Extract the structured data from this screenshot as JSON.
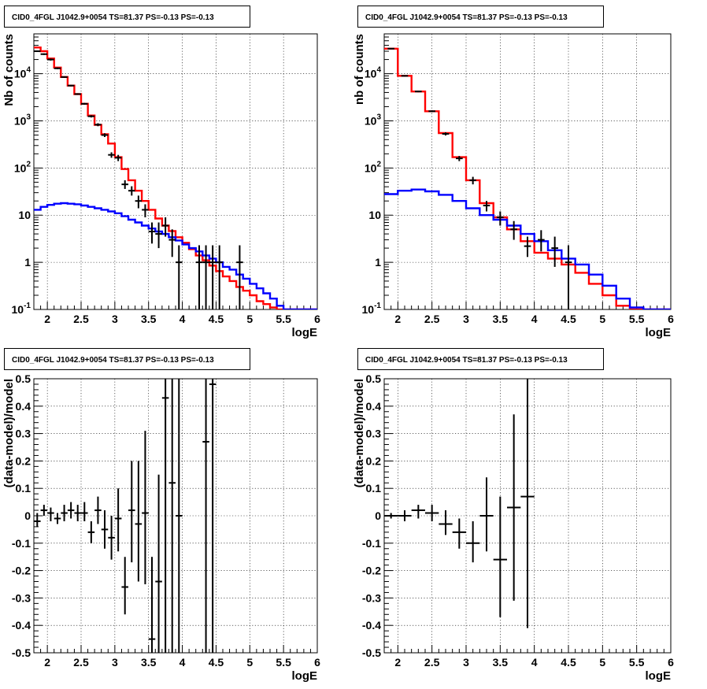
{
  "colors": {
    "model_total": "#ff0000",
    "model_background": "#0000ff",
    "data": "#000000",
    "grid": "#000000"
  },
  "chart_data": [
    {
      "type": "line",
      "title": "CID0_4FGL J1042.9+0054 TS=81.37 PS=-0.13 PS=-0.13",
      "xlabel": "logE",
      "ylabel": "Nb of counts",
      "xlim": [
        1.8,
        6.0
      ],
      "ylim": [
        0.1,
        70000
      ],
      "yscale": "log",
      "grid": true,
      "x_ticks": [
        "2",
        "2.5",
        "3",
        "3.5",
        "4",
        "4.5",
        "5",
        "5.5",
        "6"
      ],
      "y_ticks": [
        "10^-1",
        "1",
        "10",
        "10^2",
        "10^3",
        "10^4"
      ],
      "x_edges": [
        1.8,
        1.9,
        2.0,
        2.1,
        2.2,
        2.3,
        2.4,
        2.5,
        2.6,
        2.7,
        2.8,
        2.9,
        3.0,
        3.1,
        3.2,
        3.3,
        3.4,
        3.5,
        3.6,
        3.7,
        3.8,
        3.9,
        4.0,
        4.1,
        4.2,
        4.3,
        4.4,
        4.5,
        4.6,
        4.7,
        4.8,
        4.9,
        5.0,
        5.1,
        5.2,
        5.3,
        5.4,
        5.5,
        5.6,
        5.7,
        5.8,
        5.9,
        6.0
      ],
      "series": [
        {
          "name": "",
          "kind": "step",
          "color": "#ff0000",
          "values": [
            36000,
            30000,
            21000,
            13500,
            8500,
            5600,
            3700,
            2300,
            1300,
            820,
            520,
            330,
            170,
            95,
            55,
            33,
            20,
            13,
            8.5,
            6,
            4.6,
            3.4,
            2.6,
            1.9,
            1.4,
            1.1,
            0.85,
            0.65,
            0.5,
            0.4,
            0.3,
            0.25,
            0.2,
            0.15,
            0.13,
            0.11,
            0.1,
            0.1,
            0.1,
            0.1,
            0.1,
            0.1
          ]
        },
        {
          "name": "",
          "kind": "step",
          "color": "#0000ff",
          "values": [
            13,
            15,
            16.5,
            17.5,
            18,
            17.5,
            17,
            16,
            15,
            14,
            13,
            12,
            11,
            9.5,
            8,
            7,
            6,
            5.2,
            4.5,
            4,
            3.4,
            2.9,
            2.4,
            2,
            1.7,
            1.4,
            1.2,
            1,
            0.8,
            0.7,
            0.55,
            0.45,
            0.35,
            0.28,
            0.22,
            0.17,
            0.12,
            0.1,
            0.1,
            0.1,
            0.1,
            0.1
          ]
        },
        {
          "name": "",
          "kind": "points",
          "color": "#000000",
          "points": [
            {
              "x": 1.85,
              "y": 30000,
              "lo": 29000,
              "hi": 31000
            },
            {
              "x": 1.95,
              "y": 26000,
              "lo": 25000,
              "hi": 27000
            },
            {
              "x": 2.05,
              "y": 20000,
              "lo": 19000,
              "hi": 21000
            },
            {
              "x": 2.15,
              "y": 13000,
              "lo": 12500,
              "hi": 13500
            },
            {
              "x": 2.25,
              "y": 8500,
              "lo": 8200,
              "hi": 8800
            },
            {
              "x": 2.35,
              "y": 5600,
              "lo": 5400,
              "hi": 5800
            },
            {
              "x": 2.45,
              "y": 3700,
              "lo": 3550,
              "hi": 3850
            },
            {
              "x": 2.55,
              "y": 2300,
              "lo": 2200,
              "hi": 2400
            },
            {
              "x": 2.65,
              "y": 1250,
              "lo": 1180,
              "hi": 1320
            },
            {
              "x": 2.75,
              "y": 830,
              "lo": 770,
              "hi": 890
            },
            {
              "x": 2.85,
              "y": 500,
              "lo": 455,
              "hi": 545
            },
            {
              "x": 2.95,
              "y": 190,
              "lo": 165,
              "hi": 215
            },
            {
              "x": 3.05,
              "y": 165,
              "lo": 140,
              "hi": 190
            },
            {
              "x": 3.15,
              "y": 45,
              "lo": 36,
              "hi": 55
            },
            {
              "x": 3.25,
              "y": 33,
              "lo": 26,
              "hi": 41
            },
            {
              "x": 3.35,
              "y": 20,
              "lo": 14,
              "hi": 26
            },
            {
              "x": 3.45,
              "y": 13,
              "lo": 9,
              "hi": 17
            },
            {
              "x": 3.55,
              "y": 4.5,
              "lo": 2.5,
              "hi": 7
            },
            {
              "x": 3.65,
              "y": 4,
              "lo": 2,
              "hi": 7
            },
            {
              "x": 3.75,
              "y": 6,
              "lo": 3.5,
              "hi": 9
            },
            {
              "x": 3.85,
              "y": 3,
              "lo": 1.3,
              "hi": 5
            },
            {
              "x": 3.95,
              "y": 1,
              "lo": 0.1,
              "hi": 2.3
            },
            {
              "x": 4.25,
              "y": 1,
              "lo": 0.1,
              "hi": 2.3
            },
            {
              "x": 4.35,
              "y": 1,
              "lo": 0.1,
              "hi": 2.3
            },
            {
              "x": 4.45,
              "y": 1,
              "lo": 0.1,
              "hi": 2.3
            },
            {
              "x": 4.55,
              "y": 1,
              "lo": 0.1,
              "hi": 2.3
            },
            {
              "x": 4.85,
              "y": 1,
              "lo": 0.1,
              "hi": 2.3
            }
          ]
        }
      ]
    },
    {
      "type": "line",
      "title": "CID0_4FGL J1042.9+0054 TS=81.37 PS=-0.13 PS=-0.13",
      "xlabel": "logE",
      "ylabel": "nb of counts",
      "xlim": [
        1.8,
        6.0
      ],
      "ylim": [
        0.1,
        70000
      ],
      "yscale": "log",
      "grid": true,
      "x_ticks": [
        "2",
        "2.5",
        "3",
        "3.5",
        "4",
        "4.5",
        "5",
        "5.5",
        "6"
      ],
      "y_ticks": [
        "10^-1",
        "1",
        "10",
        "10^2",
        "10^3",
        "10^4"
      ],
      "x_edges": [
        1.8,
        2.0,
        2.2,
        2.4,
        2.6,
        2.8,
        3.0,
        3.2,
        3.4,
        3.6,
        3.8,
        4.0,
        4.2,
        4.4,
        4.6,
        4.8,
        5.0,
        5.2,
        5.4,
        5.6,
        5.8,
        6.0
      ],
      "series": [
        {
          "name": "",
          "kind": "step",
          "color": "#ff0000",
          "values": [
            34000,
            9000,
            4200,
            1600,
            550,
            170,
            55,
            18,
            9,
            5,
            2.8,
            1.6,
            1.2,
            0.9,
            0.6,
            0.35,
            0.2,
            0.12,
            0.1,
            0.1,
            0.1
          ]
        },
        {
          "name": "",
          "kind": "step",
          "color": "#0000ff",
          "values": [
            28,
            33,
            35,
            32,
            27,
            20,
            14,
            10,
            8,
            6,
            4,
            2.8,
            1.8,
            1.2,
            0.9,
            0.55,
            0.32,
            0.17,
            0.11,
            0.1,
            0.1
          ]
        },
        {
          "name": "",
          "kind": "points",
          "color": "#000000",
          "points": [
            {
              "x": 1.9,
              "y": 34000,
              "lo": 33000,
              "hi": 35000
            },
            {
              "x": 2.1,
              "y": 9000,
              "lo": 8700,
              "hi": 9300
            },
            {
              "x": 2.3,
              "y": 4200,
              "lo": 4050,
              "hi": 4350
            },
            {
              "x": 2.5,
              "y": 1600,
              "lo": 1530,
              "hi": 1670
            },
            {
              "x": 2.7,
              "y": 530,
              "lo": 490,
              "hi": 570
            },
            {
              "x": 2.9,
              "y": 160,
              "lo": 140,
              "hi": 180
            },
            {
              "x": 3.1,
              "y": 55,
              "lo": 45,
              "hi": 65
            },
            {
              "x": 3.3,
              "y": 16,
              "lo": 12,
              "hi": 20
            },
            {
              "x": 3.5,
              "y": 9,
              "lo": 6,
              "hi": 12
            },
            {
              "x": 3.7,
              "y": 5,
              "lo": 3,
              "hi": 7.5
            },
            {
              "x": 3.9,
              "y": 2.2,
              "lo": 1.3,
              "hi": 3.5
            },
            {
              "x": 4.1,
              "y": 3,
              "lo": 1.7,
              "hi": 4.8
            },
            {
              "x": 4.3,
              "y": 2,
              "lo": 0.8,
              "hi": 3.5
            },
            {
              "x": 4.5,
              "y": 1,
              "lo": 0.1,
              "hi": 2.3
            }
          ]
        }
      ]
    },
    {
      "type": "scatter",
      "title": "CID0_4FGL J1042.9+0054 TS=81.37 PS=-0.13 PS=-0.13",
      "xlabel": "logE",
      "ylabel": "(data-model)/model",
      "xlim": [
        1.8,
        6.0
      ],
      "ylim": [
        -0.5,
        0.5
      ],
      "grid": true,
      "x_ticks": [
        "2",
        "2.5",
        "3",
        "3.5",
        "4",
        "4.5",
        "5",
        "5.5",
        "6"
      ],
      "y_ticks": [
        "-0.5",
        "-0.4",
        "-0.3",
        "-0.2",
        "-0.1",
        "0",
        "0.1",
        "0.2",
        "0.3",
        "0.4",
        "0.5"
      ],
      "xerr": 0.05,
      "series": [
        {
          "name": "",
          "color": "#000000",
          "points": [
            {
              "x": 1.85,
              "y": -0.02,
              "lo": -0.04,
              "hi": 0.01
            },
            {
              "x": 1.95,
              "y": 0.02,
              "lo": 0.0,
              "hi": 0.04
            },
            {
              "x": 2.05,
              "y": 0.01,
              "lo": -0.02,
              "hi": 0.03
            },
            {
              "x": 2.15,
              "y": -0.01,
              "lo": -0.03,
              "hi": 0.01
            },
            {
              "x": 2.25,
              "y": 0.01,
              "lo": -0.02,
              "hi": 0.04
            },
            {
              "x": 2.35,
              "y": 0.02,
              "lo": -0.01,
              "hi": 0.05
            },
            {
              "x": 2.45,
              "y": 0.01,
              "lo": -0.02,
              "hi": 0.04
            },
            {
              "x": 2.55,
              "y": 0.01,
              "lo": -0.02,
              "hi": 0.05
            },
            {
              "x": 2.65,
              "y": -0.06,
              "lo": -0.1,
              "hi": -0.02
            },
            {
              "x": 2.75,
              "y": 0.02,
              "lo": -0.03,
              "hi": 0.07
            },
            {
              "x": 2.85,
              "y": -0.05,
              "lo": -0.12,
              "hi": 0.02
            },
            {
              "x": 2.95,
              "y": -0.08,
              "lo": -0.16,
              "hi": 0.0
            },
            {
              "x": 3.05,
              "y": -0.01,
              "lo": -0.13,
              "hi": 0.1
            },
            {
              "x": 3.15,
              "y": -0.26,
              "lo": -0.36,
              "hi": -0.15
            },
            {
              "x": 3.25,
              "y": 0.02,
              "lo": -0.17,
              "hi": 0.2
            },
            {
              "x": 3.35,
              "y": -0.03,
              "lo": -0.24,
              "hi": 0.2
            },
            {
              "x": 3.45,
              "y": 0.01,
              "lo": -0.25,
              "hi": 0.31
            },
            {
              "x": 3.55,
              "y": -0.45,
              "lo": -0.5,
              "hi": -0.15
            },
            {
              "x": 3.65,
              "y": -0.24,
              "lo": -0.5,
              "hi": 0.15
            },
            {
              "x": 3.75,
              "y": 0.43,
              "lo": -0.5,
              "hi": 0.5
            },
            {
              "x": 3.85,
              "y": 0.12,
              "lo": -0.5,
              "hi": 0.5
            },
            {
              "x": 3.95,
              "y": 0.0,
              "lo": -0.5,
              "hi": 0.5
            },
            {
              "x": 4.35,
              "y": 0.27,
              "lo": -0.5,
              "hi": 0.5
            },
            {
              "x": 4.45,
              "y": 0.48,
              "lo": -0.5,
              "hi": 0.5
            }
          ]
        }
      ]
    },
    {
      "type": "scatter",
      "title": "CID0_4FGL J1042.9+0054 TS=81.37 PS=-0.13 PS=-0.13",
      "xlabel": "logE",
      "ylabel": "(data-model)/model",
      "xlim": [
        1.8,
        6.0
      ],
      "ylim": [
        -0.5,
        0.5
      ],
      "grid": true,
      "x_ticks": [
        "2",
        "2.5",
        "3",
        "3.5",
        "4",
        "4.5",
        "5",
        "5.5",
        "6"
      ],
      "y_ticks": [
        "-0.5",
        "-0.4",
        "-0.3",
        "-0.2",
        "-0.1",
        "0",
        "0.1",
        "0.2",
        "0.3",
        "0.4",
        "0.5"
      ],
      "xerr": 0.1,
      "series": [
        {
          "name": "",
          "color": "#000000",
          "points": [
            {
              "x": 1.9,
              "y": 0.0,
              "lo": -0.01,
              "hi": 0.01
            },
            {
              "x": 2.1,
              "y": 0.0,
              "lo": -0.02,
              "hi": 0.02
            },
            {
              "x": 2.3,
              "y": 0.02,
              "lo": -0.01,
              "hi": 0.04
            },
            {
              "x": 2.5,
              "y": 0.01,
              "lo": -0.02,
              "hi": 0.04
            },
            {
              "x": 2.7,
              "y": -0.03,
              "lo": -0.07,
              "hi": 0.02
            },
            {
              "x": 2.9,
              "y": -0.06,
              "lo": -0.12,
              "hi": -0.01
            },
            {
              "x": 3.1,
              "y": -0.1,
              "lo": -0.17,
              "hi": -0.02
            },
            {
              "x": 3.3,
              "y": 0.0,
              "lo": -0.13,
              "hi": 0.14
            },
            {
              "x": 3.5,
              "y": -0.16,
              "lo": -0.37,
              "hi": 0.07
            },
            {
              "x": 3.7,
              "y": 0.03,
              "lo": -0.31,
              "hi": 0.37
            },
            {
              "x": 3.9,
              "y": 0.07,
              "lo": -0.41,
              "hi": 0.5
            }
          ]
        }
      ]
    }
  ]
}
